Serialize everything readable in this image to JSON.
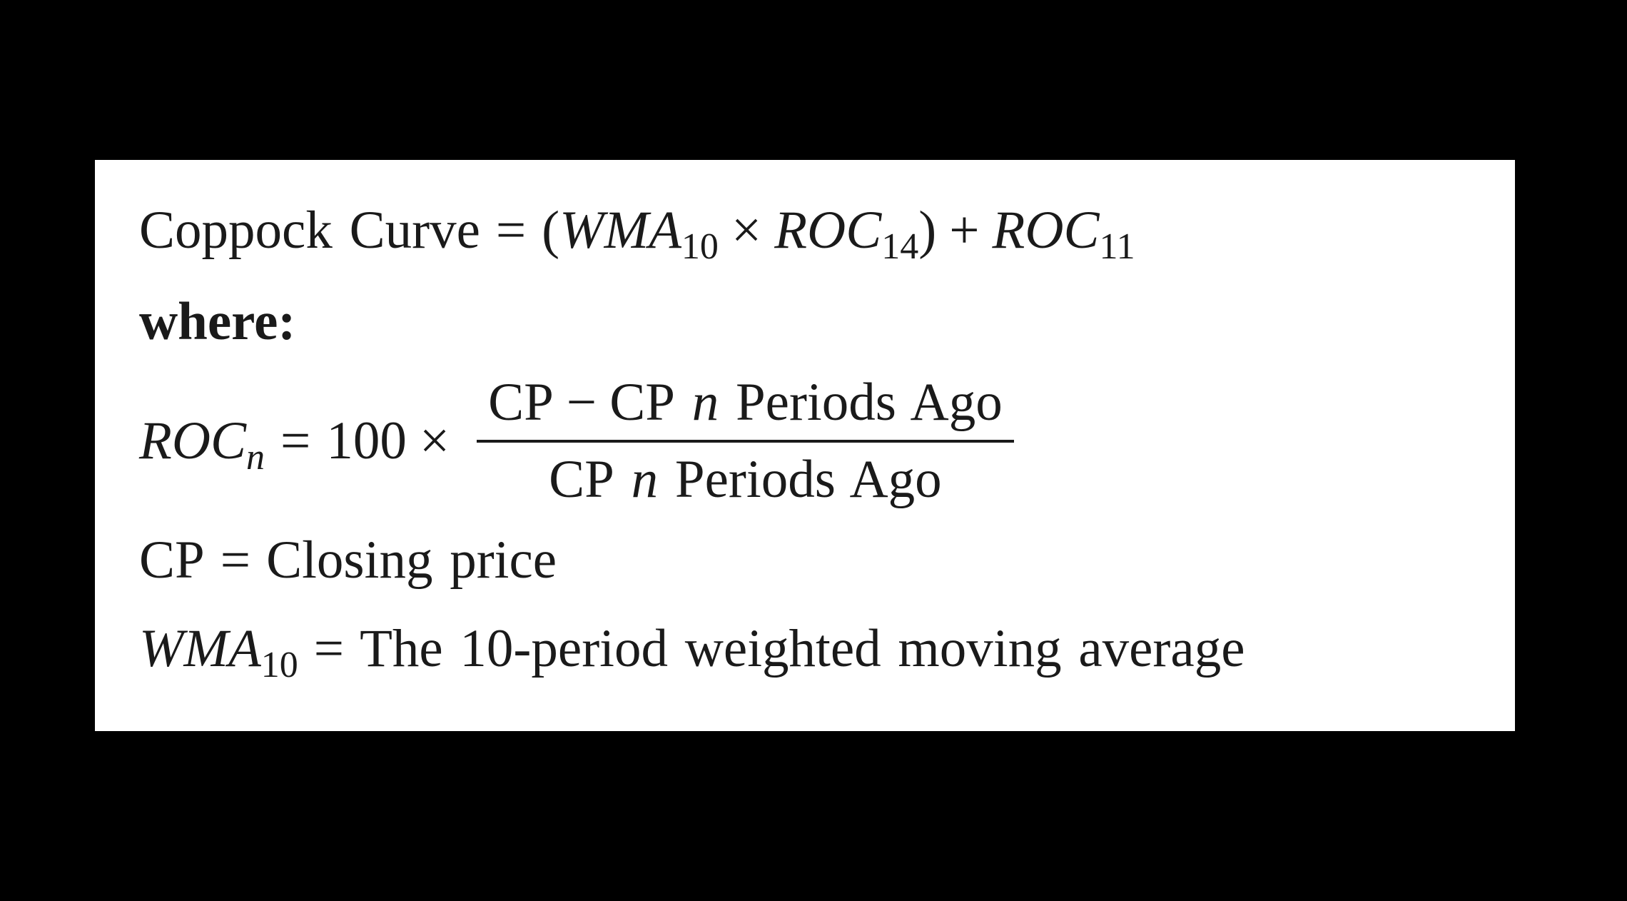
{
  "colors": {
    "page_background": "#000000",
    "panel_background": "#ffffff",
    "text": "#1a1a1a"
  },
  "formula": {
    "line1": {
      "lhs": "Coppock Curve",
      "eq": "=",
      "open_paren": "(",
      "wma": "WMA",
      "wma_sub": "10",
      "times": "×",
      "roc_a": "ROC",
      "roc_a_sub": "14",
      "close_paren": ")",
      "plus": "+",
      "roc_b": "ROC",
      "roc_b_sub": "11"
    },
    "where_label": "where:",
    "roc_definition": {
      "roc": "ROC",
      "roc_sub": "n",
      "eq": "=",
      "coefficient": "100",
      "times": "×",
      "numerator": {
        "cp1": "CP",
        "minus": "−",
        "cp2": "CP",
        "n": "n",
        "tail": "Periods Ago"
      },
      "denominator": {
        "cp": "CP",
        "n": "n",
        "tail": "Periods Ago"
      }
    },
    "cp_definition": {
      "term": "CP",
      "eq": "=",
      "description": "Closing price"
    },
    "wma_definition": {
      "term": "WMA",
      "term_sub": "10",
      "eq": "=",
      "description": "The 10-period weighted moving average"
    }
  }
}
